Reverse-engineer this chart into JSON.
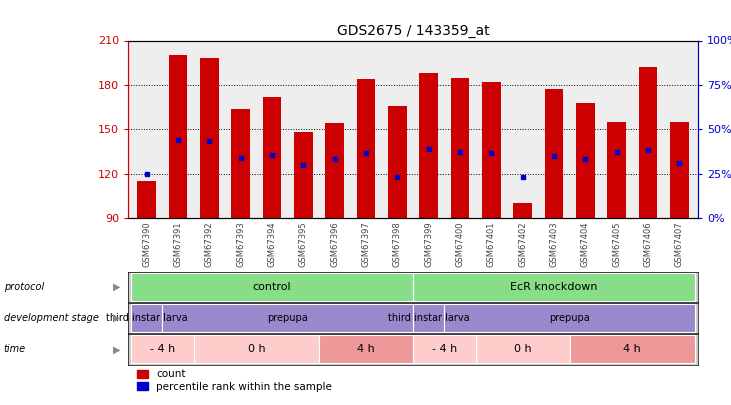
{
  "title": "GDS2675 / 143359_at",
  "samples": [
    "GSM67390",
    "GSM67391",
    "GSM67392",
    "GSM67393",
    "GSM67394",
    "GSM67395",
    "GSM67396",
    "GSM67397",
    "GSM67398",
    "GSM67399",
    "GSM67400",
    "GSM67401",
    "GSM67402",
    "GSM67403",
    "GSM67404",
    "GSM67405",
    "GSM67406",
    "GSM67407"
  ],
  "counts": [
    115,
    200,
    198,
    164,
    172,
    148,
    154,
    184,
    166,
    188,
    185,
    182,
    100,
    177,
    168,
    155,
    192,
    155
  ],
  "percentile_values": [
    120,
    143,
    142,
    131,
    133,
    126,
    130,
    134,
    118,
    137,
    135,
    134,
    118,
    132,
    130,
    135,
    136,
    127
  ],
  "y_min": 90,
  "y_max": 210,
  "y_ticks_left": [
    90,
    120,
    150,
    180,
    210
  ],
  "y2_ticks_pct": [
    0,
    25,
    50,
    75,
    100
  ],
  "bar_color": "#cc0000",
  "dot_color": "#0000cc",
  "bg_color": "#ffffff",
  "plot_bg_color": "#eeeeee",
  "grid_lines": [
    120,
    150,
    180
  ],
  "protocol_labels": [
    "control",
    "EcR knockdown"
  ],
  "protocol_ranges": [
    [
      0,
      8
    ],
    [
      9,
      17
    ]
  ],
  "protocol_color": "#88dd88",
  "dev_labels": [
    "third instar larva",
    "prepupa",
    "third instar larva",
    "prepupa"
  ],
  "dev_ranges": [
    [
      0,
      0
    ],
    [
      1,
      8
    ],
    [
      9,
      9
    ],
    [
      10,
      17
    ]
  ],
  "dev_color": "#9988cc",
  "time_labels": [
    "- 4 h",
    "0 h",
    "4 h",
    "- 4 h",
    "0 h",
    "4 h"
  ],
  "time_ranges": [
    [
      0,
      1
    ],
    [
      2,
      5
    ],
    [
      6,
      8
    ],
    [
      9,
      10
    ],
    [
      11,
      13
    ],
    [
      14,
      17
    ]
  ],
  "time_colors": [
    "#ffcccc",
    "#ffcccc",
    "#ee9999",
    "#ffcccc",
    "#ffcccc",
    "#ee9999"
  ],
  "row_labels": [
    "protocol",
    "development stage",
    "time"
  ],
  "legend_labels": [
    "count",
    "percentile rank within the sample"
  ]
}
